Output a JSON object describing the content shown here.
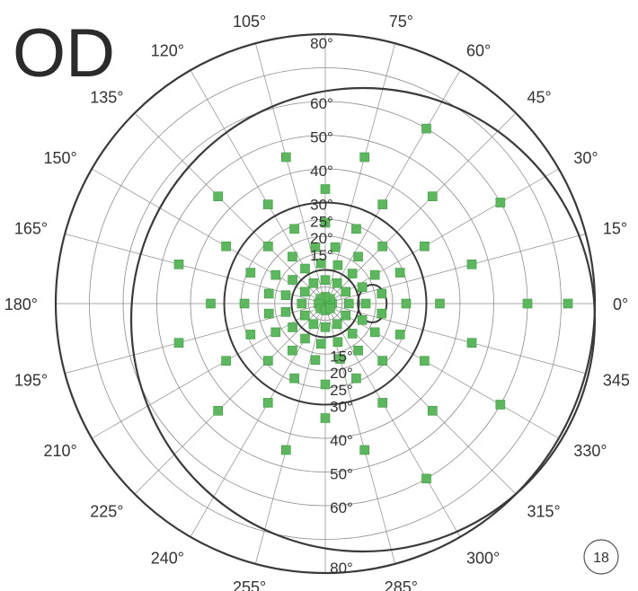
{
  "eye_label": "OD",
  "test_number": "18",
  "chart_data": {
    "type": "scatter",
    "coordinate_system": "polar",
    "angle_unit": "degrees",
    "angle_labels": [
      "0°",
      "15°",
      "30°",
      "45°",
      "60°",
      "75°",
      "105°",
      "120°",
      "135°",
      "150°",
      "165°",
      "180°",
      "195°",
      "210°",
      "225°",
      "240°",
      "255°",
      "285°",
      "300°",
      "315°",
      "330°",
      "345"
    ],
    "radial_labels_top": [
      "15°",
      "20°",
      "25°",
      "30°",
      "40°",
      "50°",
      "60°",
      "80°"
    ],
    "radial_labels_bottom": [
      "15°",
      "20°",
      "25°",
      "30°",
      "40°",
      "50°",
      "60°",
      "80°"
    ],
    "radial_ticks": [
      5,
      10,
      15,
      20,
      25,
      30,
      40,
      50,
      60,
      70,
      80
    ],
    "bold_rings": [
      10,
      30
    ],
    "blind_spot": {
      "angle": 0,
      "eccentricity": 15
    },
    "isopter_boundary": "eccentric circle enclosing the tested field",
    "colors": {
      "marker": "#5cb85c",
      "marker_stroke": "#3f9a3f",
      "grid": "#8c8c8c",
      "bold": "#3a3a3a"
    },
    "series": [
      {
        "marker": "square",
        "points": [
          {
            "angle": 0,
            "ecc": 2
          },
          {
            "angle": 45,
            "ecc": 2
          },
          {
            "angle": 90,
            "ecc": 2
          },
          {
            "angle": 135,
            "ecc": 2
          },
          {
            "angle": 180,
            "ecc": 2
          },
          {
            "angle": 225,
            "ecc": 2
          },
          {
            "angle": 270,
            "ecc": 2
          },
          {
            "angle": 315,
            "ecc": 2
          },
          {
            "angle": 0,
            "ecc": 7
          },
          {
            "angle": 30,
            "ecc": 7
          },
          {
            "angle": 60,
            "ecc": 7
          },
          {
            "angle": 90,
            "ecc": 7
          },
          {
            "angle": 120,
            "ecc": 7
          },
          {
            "angle": 150,
            "ecc": 7
          },
          {
            "angle": 180,
            "ecc": 7
          },
          {
            "angle": 210,
            "ecc": 7
          },
          {
            "angle": 240,
            "ecc": 7
          },
          {
            "angle": 270,
            "ecc": 7
          },
          {
            "angle": 300,
            "ecc": 7
          },
          {
            "angle": 330,
            "ecc": 7
          },
          {
            "angle": 0,
            "ecc": 12
          },
          {
            "angle": 24,
            "ecc": 12
          },
          {
            "angle": 48,
            "ecc": 12
          },
          {
            "angle": 72,
            "ecc": 12
          },
          {
            "angle": 96,
            "ecc": 12
          },
          {
            "angle": 120,
            "ecc": 12
          },
          {
            "angle": 144,
            "ecc": 12
          },
          {
            "angle": 168,
            "ecc": 12
          },
          {
            "angle": 192,
            "ecc": 12
          },
          {
            "angle": 216,
            "ecc": 12
          },
          {
            "angle": 240,
            "ecc": 12
          },
          {
            "angle": 264,
            "ecc": 12
          },
          {
            "angle": 288,
            "ecc": 12
          },
          {
            "angle": 312,
            "ecc": 12
          },
          {
            "angle": 336,
            "ecc": 12
          },
          {
            "angle": 10,
            "ecc": 17
          },
          {
            "angle": 30,
            "ecc": 17
          },
          {
            "angle": 55,
            "ecc": 17
          },
          {
            "angle": 80,
            "ecc": 17
          },
          {
            "angle": 100,
            "ecc": 17
          },
          {
            "angle": 125,
            "ecc": 17
          },
          {
            "angle": 150,
            "ecc": 17
          },
          {
            "angle": 170,
            "ecc": 17
          },
          {
            "angle": 190,
            "ecc": 17
          },
          {
            "angle": 210,
            "ecc": 17
          },
          {
            "angle": 235,
            "ecc": 17
          },
          {
            "angle": 260,
            "ecc": 17
          },
          {
            "angle": 285,
            "ecc": 17
          },
          {
            "angle": 305,
            "ecc": 17
          },
          {
            "angle": 330,
            "ecc": 17
          },
          {
            "angle": 350,
            "ecc": 17
          },
          {
            "angle": 0,
            "ecc": 24
          },
          {
            "angle": 22.5,
            "ecc": 24
          },
          {
            "angle": 45,
            "ecc": 24
          },
          {
            "angle": 67.5,
            "ecc": 24
          },
          {
            "angle": 90,
            "ecc": 24
          },
          {
            "angle": 112.5,
            "ecc": 24
          },
          {
            "angle": 135,
            "ecc": 24
          },
          {
            "angle": 157.5,
            "ecc": 24
          },
          {
            "angle": 180,
            "ecc": 24
          },
          {
            "angle": 202.5,
            "ecc": 24
          },
          {
            "angle": 225,
            "ecc": 24
          },
          {
            "angle": 247.5,
            "ecc": 24
          },
          {
            "angle": 270,
            "ecc": 24
          },
          {
            "angle": 292.5,
            "ecc": 24
          },
          {
            "angle": 315,
            "ecc": 24
          },
          {
            "angle": 337.5,
            "ecc": 24
          },
          {
            "angle": 0,
            "ecc": 34
          },
          {
            "angle": 30,
            "ecc": 34
          },
          {
            "angle": 60,
            "ecc": 34
          },
          {
            "angle": 90,
            "ecc": 34
          },
          {
            "angle": 120,
            "ecc": 34
          },
          {
            "angle": 150,
            "ecc": 34
          },
          {
            "angle": 180,
            "ecc": 34
          },
          {
            "angle": 210,
            "ecc": 34
          },
          {
            "angle": 240,
            "ecc": 34
          },
          {
            "angle": 270,
            "ecc": 34
          },
          {
            "angle": 300,
            "ecc": 34
          },
          {
            "angle": 330,
            "ecc": 34
          },
          {
            "angle": 15,
            "ecc": 45
          },
          {
            "angle": 45,
            "ecc": 45
          },
          {
            "angle": 75,
            "ecc": 45
          },
          {
            "angle": 105,
            "ecc": 45
          },
          {
            "angle": 135,
            "ecc": 45
          },
          {
            "angle": 165,
            "ecc": 45
          },
          {
            "angle": 195,
            "ecc": 45
          },
          {
            "angle": 225,
            "ecc": 45
          },
          {
            "angle": 255,
            "ecc": 45
          },
          {
            "angle": 285,
            "ecc": 45
          },
          {
            "angle": 315,
            "ecc": 45
          },
          {
            "angle": 345,
            "ecc": 45
          },
          {
            "angle": 0,
            "ecc": 60
          },
          {
            "angle": 30,
            "ecc": 60
          },
          {
            "angle": 60,
            "ecc": 60
          },
          {
            "angle": 300,
            "ecc": 60
          },
          {
            "angle": 330,
            "ecc": 60
          },
          {
            "angle": 0,
            "ecc": 72
          }
        ]
      }
    ]
  }
}
